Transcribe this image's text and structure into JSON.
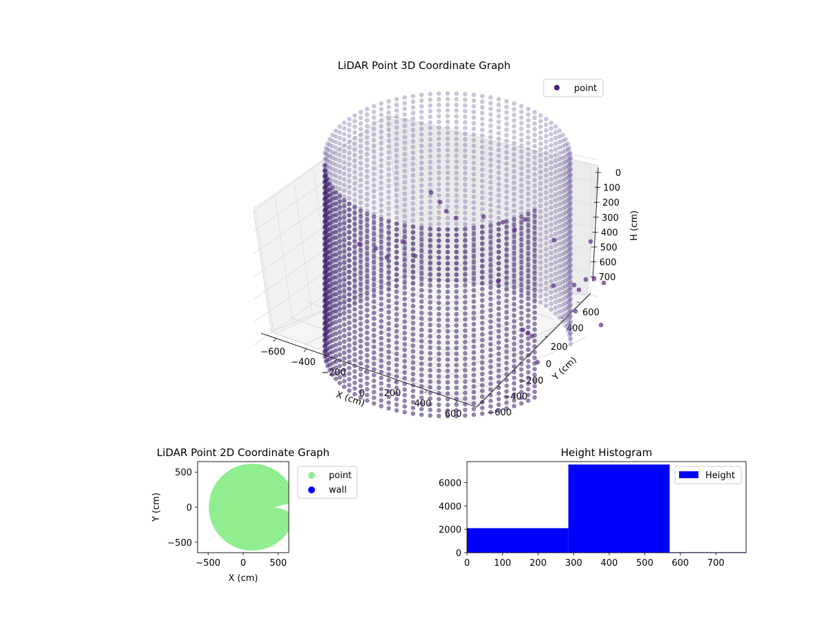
{
  "chart_data": [
    {
      "type": "scatter",
      "title": "LiDAR Point 3D Coordinate Graph",
      "xlabel": "X (cm)",
      "ylabel": "Y (cm)",
      "zlabel": "H (cm)",
      "xticks": [
        "−600",
        "−400",
        "−200",
        "0",
        "200",
        "400",
        "600"
      ],
      "yticks": [
        "−600",
        "−400",
        "−200",
        "0",
        "200",
        "400",
        "600"
      ],
      "zticks": [
        "0",
        "100",
        "200",
        "300",
        "400",
        "500",
        "600",
        "700"
      ],
      "xlim": [
        -650,
        650
      ],
      "ylim": [
        -650,
        650
      ],
      "zlim": [
        0,
        760
      ],
      "z_axis_inverted": true,
      "grid": true,
      "legend": {
        "position": "top-right",
        "entries": [
          {
            "label": "point",
            "color": "#4b1c74"
          }
        ]
      },
      "series": [
        {
          "name": "point",
          "color": "#4b1c74",
          "shape": "cylindrical shell of radius ~600 cm spanning heights 0–700 cm, open gap near angle 0°, with scattered interior points"
        }
      ]
    },
    {
      "type": "scatter",
      "title": "LiDAR Point 2D Coordinate Graph",
      "xlabel": "X (cm)",
      "ylabel": "Y (cm)",
      "xticks": [
        "−500",
        "0",
        "500"
      ],
      "yticks": [
        "500",
        "0",
        "−500"
      ],
      "xlim": [
        -650,
        650
      ],
      "ylim": [
        -650,
        650
      ],
      "legend": {
        "position": "outside-right",
        "entries": [
          {
            "label": "point",
            "color": "#90ee90"
          },
          {
            "label": "wall",
            "color": "#0000ff"
          }
        ]
      },
      "series": [
        {
          "name": "point",
          "color": "#90ee90",
          "shape": "filled disc of radius ~620 cm with notch on the right"
        },
        {
          "name": "wall",
          "color": "#0000ff",
          "values": []
        }
      ]
    },
    {
      "type": "bar",
      "title": "Height Histogram",
      "xticks": [
        "0",
        "100",
        "200",
        "300",
        "400",
        "500",
        "600",
        "700"
      ],
      "yticks": [
        "0",
        "2000",
        "4000",
        "6000"
      ],
      "xlim": [
        0,
        785
      ],
      "ylim": [
        0,
        7800
      ],
      "legend": {
        "position": "top-right",
        "entries": [
          {
            "label": "Height",
            "color": "#0000ff"
          }
        ]
      },
      "bins": [
        {
          "x0": 0,
          "x1": 285,
          "count": 2100
        },
        {
          "x0": 285,
          "x1": 570,
          "count": 7550
        },
        {
          "x0": 570,
          "x1": 785,
          "count": 40
        }
      ],
      "color": "#0000ff"
    }
  ]
}
